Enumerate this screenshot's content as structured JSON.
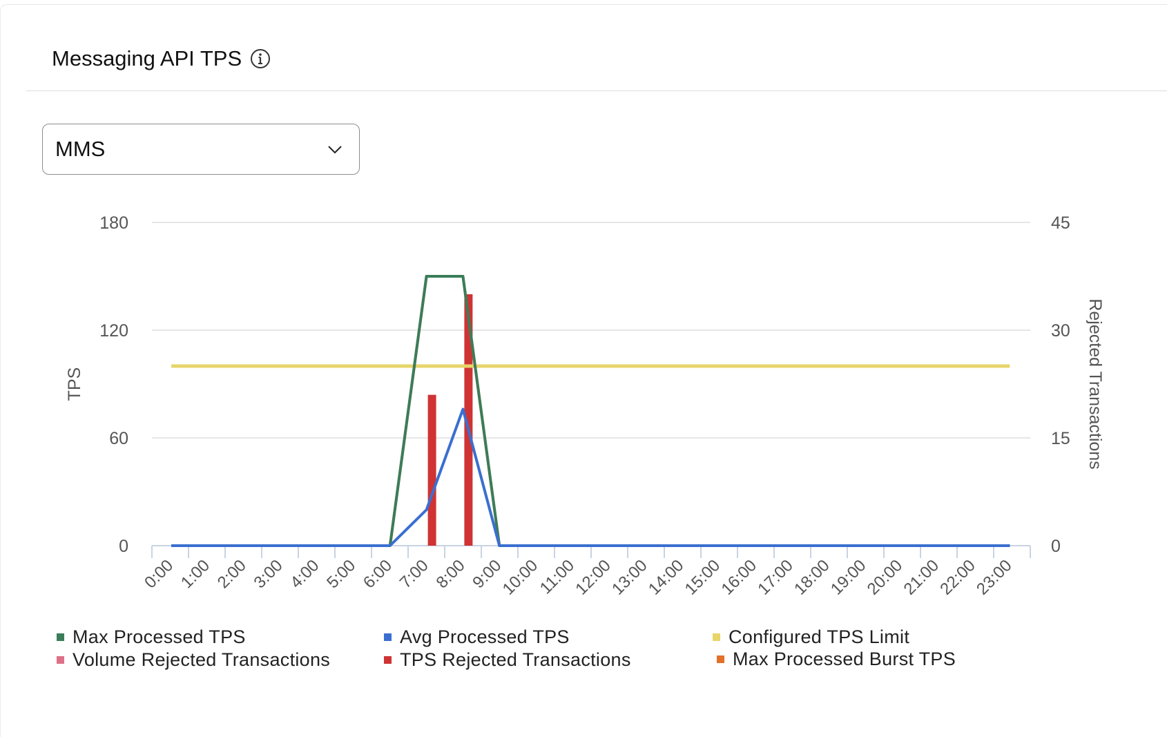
{
  "card": {
    "title": "Messaging API TPS",
    "info_icon": "info-icon"
  },
  "select": {
    "value": "MMS",
    "icon": "chevron-down-icon"
  },
  "colors": {
    "max_processed": "#3a7d5a",
    "avg_processed": "#3a6fd1",
    "configured_limit": "#e8d56a",
    "volume_rejected": "#de7087",
    "tps_rejected": "#cf3334",
    "burst": "#e27029",
    "grid": "#e6e6e6",
    "axis": "#c9d3e3"
  },
  "chart_data": {
    "type": "line",
    "xlabel": "",
    "ylabel": "TPS",
    "y2label": "Rejected Transactions",
    "ylim": [
      0,
      180
    ],
    "y2lim": [
      0,
      45
    ],
    "yticks": [
      "180",
      "120",
      "60",
      "0"
    ],
    "y2ticks": [
      "45",
      "30",
      "15",
      "0"
    ],
    "grid": true,
    "legend_position": "bottom",
    "categories": [
      "0:00",
      "1:00",
      "2:00",
      "3:00",
      "4:00",
      "5:00",
      "6:00",
      "7:00",
      "8:00",
      "9:00",
      "10:00",
      "11:00",
      "12:00",
      "13:00",
      "14:00",
      "15:00",
      "16:00",
      "17:00",
      "18:00",
      "19:00",
      "20:00",
      "21:00",
      "22:00",
      "23:00"
    ],
    "series": [
      {
        "name": "Max Processed TPS",
        "type": "line",
        "axis": "left",
        "values": [
          0,
          0,
          0,
          0,
          0,
          0,
          0,
          150,
          150,
          0,
          0,
          0,
          0,
          0,
          0,
          0,
          0,
          0,
          0,
          0,
          0,
          0,
          0,
          0
        ]
      },
      {
        "name": "Avg Processed TPS",
        "type": "line",
        "axis": "left",
        "values": [
          0,
          0,
          0,
          0,
          0,
          0,
          0,
          20,
          76,
          0,
          0,
          0,
          0,
          0,
          0,
          0,
          0,
          0,
          0,
          0,
          0,
          0,
          0,
          0
        ]
      },
      {
        "name": "Configured TPS Limit",
        "type": "line",
        "axis": "left",
        "values": [
          100,
          100,
          100,
          100,
          100,
          100,
          100,
          100,
          100,
          100,
          100,
          100,
          100,
          100,
          100,
          100,
          100,
          100,
          100,
          100,
          100,
          100,
          100,
          100
        ]
      },
      {
        "name": "Volume Rejected Transactions",
        "type": "bar",
        "axis": "right",
        "values": [
          0,
          0,
          0,
          0,
          0,
          0,
          0,
          0,
          0,
          0,
          0,
          0,
          0,
          0,
          0,
          0,
          0,
          0,
          0,
          0,
          0,
          0,
          0,
          0
        ]
      },
      {
        "name": "TPS Rejected Transactions",
        "type": "bar",
        "axis": "right",
        "values": [
          0,
          0,
          0,
          0,
          0,
          0,
          0,
          21,
          35,
          0,
          0,
          0,
          0,
          0,
          0,
          0,
          0,
          0,
          0,
          0,
          0,
          0,
          0,
          0
        ]
      },
      {
        "name": "Max Processed Burst TPS",
        "type": "line",
        "axis": "left",
        "values": [
          0,
          0,
          0,
          0,
          0,
          0,
          0,
          150,
          150,
          0,
          0,
          0,
          0,
          0,
          0,
          0,
          0,
          0,
          0,
          0,
          0,
          0,
          0,
          0
        ]
      }
    ]
  },
  "legend": [
    {
      "label": "Max Processed TPS",
      "color_key": "max_processed"
    },
    {
      "label": "Avg Processed TPS",
      "color_key": "avg_processed"
    },
    {
      "label": "Configured TPS Limit",
      "color_key": "configured_limit"
    },
    {
      "label": "Volume Rejected Transactions",
      "color_key": "volume_rejected"
    },
    {
      "label": "TPS Rejected Transactions",
      "color_key": "tps_rejected"
    },
    {
      "label": "Max Processed Burst TPS",
      "color_key": "burst"
    }
  ]
}
